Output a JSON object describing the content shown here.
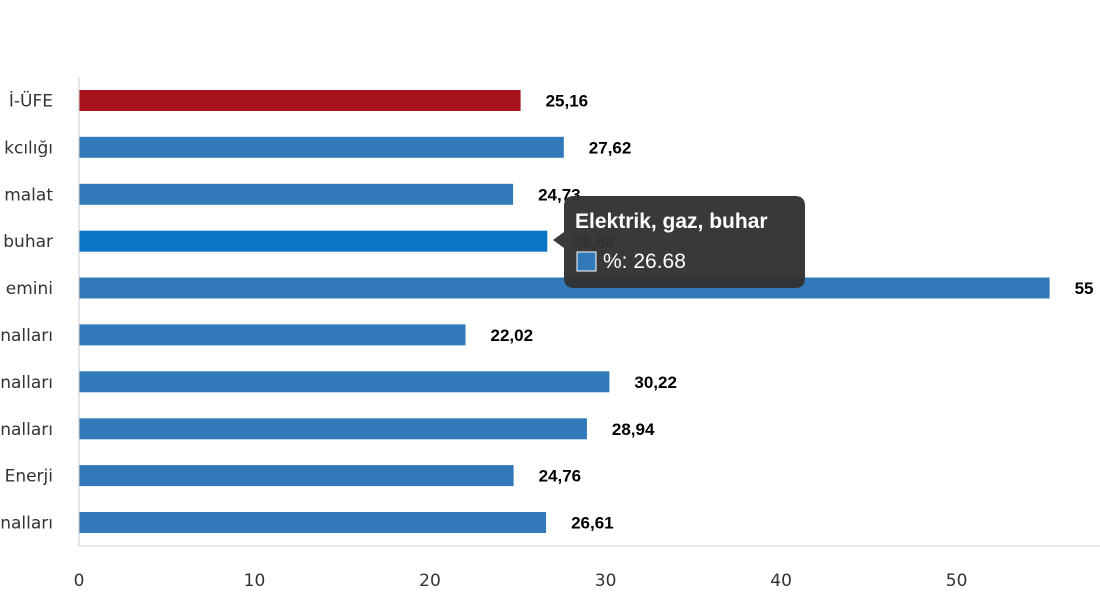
{
  "chart_data": {
    "type": "bar",
    "orientation": "horizontal",
    "categories": [
      "İ-ÜFE",
      "kcılığı",
      "malat",
      "buhar",
      "emini",
      "nalları",
      "nalları",
      "nalları",
      "Enerji",
      "nalları"
    ],
    "values": [
      25.16,
      27.62,
      24.73,
      26.68,
      55.3,
      22.02,
      30.22,
      28.94,
      24.76,
      26.61
    ],
    "value_labels": [
      "25,16",
      "27,62",
      "24,73",
      "26,68",
      "55",
      "22,02",
      "30,22",
      "28,94",
      "24,76",
      "26,61"
    ],
    "xlim": [
      0,
      58
    ],
    "x_ticks": [
      0,
      10,
      20,
      30,
      40,
      50
    ],
    "highlight_color": "#a8141b",
    "bar_color": "#3179b8",
    "hover_color": "#0d75c6",
    "highlight_index": 0,
    "hover_index": 3,
    "grid": false
  },
  "tooltip": {
    "title": "Elektrik, gaz, buhar",
    "body": "%: 26.68",
    "swatch_color": "#3179b8"
  }
}
